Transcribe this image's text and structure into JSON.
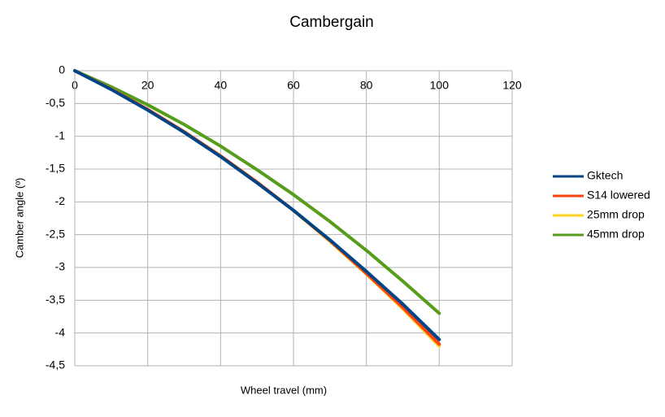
{
  "chart_data": {
    "type": "line",
    "title": "Cambergain",
    "x_label": "Wheel travel (mm)",
    "y_label": "Camber angle (º)",
    "x": [
      0,
      10,
      20,
      30,
      40,
      50,
      60,
      70,
      80,
      90,
      100
    ],
    "series": [
      {
        "name": "Gktech",
        "color": "#004586",
        "values": [
          0,
          -0.286,
          -0.6,
          -0.94,
          -1.31,
          -1.71,
          -2.13,
          -2.58,
          -3.06,
          -3.56,
          -4.1
        ]
      },
      {
        "name": "S14 lowered",
        "color": "#ff420e",
        "values": [
          0,
          -0.28,
          -0.59,
          -0.93,
          -1.3,
          -1.7,
          -2.13,
          -2.59,
          -3.09,
          -3.61,
          -4.17
        ]
      },
      {
        "name": "25mm drop",
        "color": "#ffd320",
        "values": [
          0,
          -0.28,
          -0.59,
          -0.93,
          -1.3,
          -1.7,
          -2.13,
          -2.6,
          -3.1,
          -3.63,
          -4.2
        ]
      },
      {
        "name": "45mm drop",
        "color": "#579d1c",
        "values": [
          0,
          -0.246,
          -0.52,
          -0.82,
          -1.15,
          -1.51,
          -1.89,
          -2.3,
          -2.74,
          -3.21,
          -3.7
        ]
      }
    ],
    "xlim": [
      0,
      120
    ],
    "xticks": [
      0,
      20,
      40,
      60,
      80,
      100,
      120
    ],
    "ylim": [
      -4.5,
      0
    ],
    "yticks": [
      0,
      {
        "value": -0.5,
        "label": "-0,5"
      },
      -1,
      {
        "value": -1.5,
        "label": "-1,5"
      },
      -2,
      {
        "value": -2.5,
        "label": "-2,5"
      },
      -3,
      {
        "value": -3.5,
        "label": "-3,5"
      },
      -4,
      {
        "value": -4.5,
        "label": "-4,5"
      }
    ],
    "grid": true,
    "legend": "right"
  }
}
